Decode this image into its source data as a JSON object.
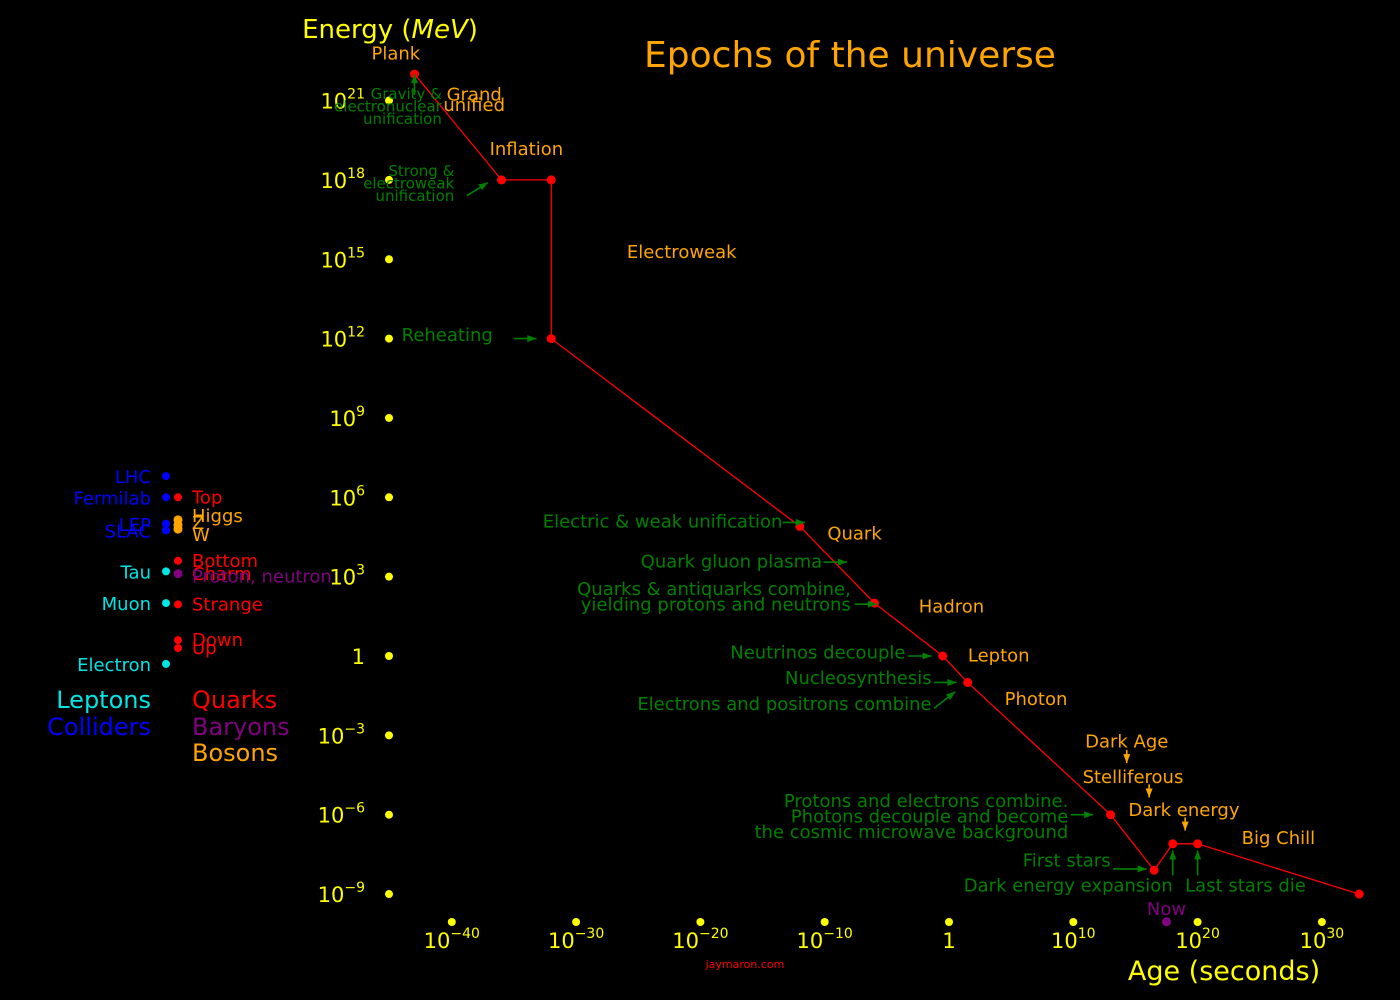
{
  "chart_data": {
    "type": "line",
    "title": "Epochs of the universe",
    "ylabel_prefix": "Energy (",
    "ylabel_unit": "MeV",
    "ylabel_suffix": ")",
    "xlabel": "Age (seconds)",
    "credit": "jaymaron.com",
    "x_scale": "log10",
    "y_scale": "log10",
    "x_ticks": [
      {
        "exp": -40,
        "base": "10",
        "sup": "−40"
      },
      {
        "exp": -30,
        "base": "10",
        "sup": "−30"
      },
      {
        "exp": -20,
        "base": "10",
        "sup": "−20"
      },
      {
        "exp": -10,
        "base": "10",
        "sup": "−10"
      },
      {
        "exp": 0,
        "base": "1",
        "sup": ""
      },
      {
        "exp": 10,
        "base": "10",
        "sup": "10"
      },
      {
        "exp": 20,
        "base": "10",
        "sup": "20"
      },
      {
        "exp": 30,
        "base": "10",
        "sup": "30"
      }
    ],
    "y_ticks": [
      {
        "exp": 21,
        "base": "10",
        "sup": "21"
      },
      {
        "exp": 18,
        "base": "10",
        "sup": "18"
      },
      {
        "exp": 15,
        "base": "10",
        "sup": "15"
      },
      {
        "exp": 12,
        "base": "10",
        "sup": "12"
      },
      {
        "exp": 9,
        "base": "10",
        "sup": "9"
      },
      {
        "exp": 6,
        "base": "10",
        "sup": "6"
      },
      {
        "exp": 3,
        "base": "10",
        "sup": "3"
      },
      {
        "exp": 0,
        "base": "1",
        "sup": ""
      },
      {
        "exp": -3,
        "base": "10",
        "sup": "−3"
      },
      {
        "exp": -6,
        "base": "10",
        "sup": "−6"
      },
      {
        "exp": -9,
        "base": "10",
        "sup": "−9"
      }
    ],
    "series": [
      {
        "color": "#ff0000",
        "points": [
          {
            "x": -43,
            "y": 22
          },
          {
            "x": -36,
            "y": 18
          },
          {
            "x": -32,
            "y": 18
          },
          {
            "x": -32,
            "y": 12
          },
          {
            "x": -12,
            "y": 4.9
          },
          {
            "x": -6,
            "y": 2
          },
          {
            "x": -0.5,
            "y": 0
          },
          {
            "x": 1.5,
            "y": -1
          },
          {
            "x": 13,
            "y": -6
          },
          {
            "x": 16.5,
            "y": -8.1
          },
          {
            "x": 18,
            "y": -7.1
          },
          {
            "x": 20,
            "y": -7.1
          },
          {
            "x": 33,
            "y": -9
          }
        ]
      }
    ],
    "now_point": {
      "x": 17.5,
      "y": -10.05,
      "label": "Now",
      "color": "#800080"
    },
    "epoch_labels": [
      {
        "text": "Plank",
        "x": -44.5,
        "y": 22.55
      },
      {
        "text": "Grand",
        "x": -38.2,
        "y": 21.0
      },
      {
        "text": "unified",
        "x": -38.2,
        "y": 20.6
      },
      {
        "text": "Inflation",
        "x": -34,
        "y": 18.95
      },
      {
        "text": "Electroweak",
        "x": -21.5,
        "y": 15.05
      },
      {
        "text": "Quark",
        "x": -7.6,
        "y": 4.4
      },
      {
        "text": "Hadron",
        "x": 0.2,
        "y": 1.65
      },
      {
        "text": "Lepton",
        "x": 4,
        "y": -0.2
      },
      {
        "text": "Photon",
        "x": 7,
        "y": -1.85
      },
      {
        "text": "Dark Age",
        "x": 14.3,
        "y": -3.45
      },
      {
        "text": "Stelliferous",
        "x": 14.8,
        "y": -4.8
      },
      {
        "text": "Dark energy",
        "x": 18.9,
        "y": -6.05
      },
      {
        "text": "Big Chill",
        "x": 26.5,
        "y": -7.1
      }
    ],
    "events": [
      {
        "lines": [
          "Gravity &",
          "electronuclear",
          "unification"
        ],
        "x": -40.8,
        "y": 21.05,
        "arrow": {
          "from": [
            -43,
            21.2
          ],
          "to": [
            -43,
            22
          ]
        }
      },
      {
        "lines": [
          "Strong &",
          "electroweak",
          "unification"
        ],
        "x": -39.8,
        "y": 18.15,
        "arrow": {
          "from": [
            -38.8,
            17.4
          ],
          "to": [
            -37.1,
            17.9
          ]
        }
      },
      {
        "lines": [
          "Reheating"
        ],
        "x": -36.7,
        "y": 11.9,
        "arrow": {
          "from": [
            -35,
            12
          ],
          "to": [
            -33.2,
            12
          ]
        }
      },
      {
        "lines": [
          "Electric & weak unification"
        ],
        "x": -13.4,
        "y": 4.85,
        "arrow": {
          "from": [
            -13.4,
            5.05
          ],
          "to": [
            -11.6,
            5.05
          ]
        }
      },
      {
        "lines": [
          "Quark gluon plasma"
        ],
        "x": -10.2,
        "y": 3.35,
        "arrow": {
          "from": [
            -10.1,
            3.55
          ],
          "to": [
            -8.2,
            3.55
          ]
        }
      },
      {
        "lines": [
          "Quarks & antiquarks combine,",
          "yielding protons and neutrons"
        ],
        "x": -7.9,
        "y": 2.3,
        "arrow": {
          "from": [
            -7.6,
            1.96
          ],
          "to": [
            -5.8,
            1.96
          ]
        }
      },
      {
        "lines": [
          "Neutrinos decouple"
        ],
        "x": -3.5,
        "y": -0.1,
        "arrow": {
          "from": [
            -3.3,
            0
          ],
          "to": [
            -1.4,
            0
          ]
        }
      },
      {
        "lines": [
          "Nucleosynthesis"
        ],
        "x": -1.4,
        "y": -1.05,
        "arrow": {
          "from": [
            -1.2,
            -1
          ],
          "to": [
            0.6,
            -1
          ]
        }
      },
      {
        "lines": [
          "Electrons and positrons combine"
        ],
        "x": -1.4,
        "y": -2.05,
        "arrow": {
          "from": [
            -1.2,
            -1.98
          ],
          "to": [
            0.5,
            -1.35
          ]
        }
      },
      {
        "lines": [
          "Protons and electrons combine.",
          "Photons decouple and become",
          "the cosmic microwave background"
        ],
        "x": 9.6,
        "y": -5.7,
        "arrow": {
          "from": [
            9.8,
            -6.0
          ],
          "to": [
            11.6,
            -6.0
          ]
        }
      },
      {
        "lines": [
          "First stars"
        ],
        "x": 13.0,
        "y": -7.95,
        "arrow": {
          "from": [
            13.2,
            -8.05
          ],
          "to": [
            15.9,
            -8.05
          ]
        }
      },
      {
        "lines": [
          "Dark energy expansion"
        ],
        "x": 18.0,
        "y": -8.9,
        "arrow": {
          "from": [
            18.0,
            -8.3
          ],
          "to": [
            18.0,
            -7.35
          ]
        }
      },
      {
        "lines": [
          "Last stars die"
        ],
        "x": 19.0,
        "y": -8.9,
        "arrow": {
          "from": [
            20.0,
            -8.3
          ],
          "to": [
            20.0,
            -7.35
          ]
        }
      }
    ],
    "epoch_arrows": [
      {
        "from": [
          14.3,
          -3.55
        ],
        "to": [
          14.3,
          -4.05
        ]
      },
      {
        "from": [
          16.1,
          -4.85
        ],
        "to": [
          16.1,
          -5.35
        ]
      },
      {
        "from": [
          19.0,
          -6.1
        ],
        "to": [
          19.0,
          -6.6
        ]
      }
    ],
    "particles": {
      "leptons": [
        {
          "name": "Tau",
          "y": 3.2
        },
        {
          "name": "Muon",
          "y": 2.0
        },
        {
          "name": "Electron",
          "y": -0.3
        }
      ],
      "colliders": [
        {
          "name": "LHC",
          "y": 6.8
        },
        {
          "name": "Fermilab",
          "y": 6.0
        },
        {
          "name": "LEP",
          "y": 5.0
        },
        {
          "name": "SLAC",
          "y": 4.75
        }
      ],
      "quarks": [
        {
          "name": "Top",
          "y": 6.0,
          "dot": true
        },
        {
          "name": "Bottom",
          "y": 3.6,
          "dot": true
        },
        {
          "name": "Charm",
          "y": 3.1,
          "dot": true
        },
        {
          "name": "Strange",
          "y": 1.95,
          "dot": true
        },
        {
          "name": "Down",
          "y": 0.6,
          "dot": true
        },
        {
          "name": "Up",
          "y": 0.3,
          "dot": true
        }
      ],
      "baryons": [
        {
          "name": "Proton, neutron",
          "y": 3.0,
          "dot": false
        }
      ],
      "bosons": [
        {
          "name": "Higgs",
          "y": 5.3,
          "dot": true
        },
        {
          "name": "Z",
          "y": 5.1,
          "dot": true
        },
        {
          "name": "W",
          "y": 4.95,
          "dot": true
        }
      ]
    },
    "legend": [
      {
        "text": "Leptons",
        "color": "#00e5e5"
      },
      {
        "text": "Colliders",
        "color": "#0000ff"
      },
      {
        "text": "Quarks",
        "color": "#ff0000"
      },
      {
        "text": "Baryons",
        "color": "#800080"
      },
      {
        "text": "Bosons",
        "color": "#ffa500"
      }
    ],
    "colors": {
      "background": "#000000",
      "title": "#ffa500",
      "axis": "#ffff00",
      "line": "#ff0000",
      "event": "#008000",
      "epoch": "#ffa500",
      "lepton": "#00e5e5",
      "collider": "#0000ff",
      "quark": "#ff0000",
      "baryon": "#800080",
      "boson": "#ffa500",
      "credit": "#ff0000"
    }
  }
}
